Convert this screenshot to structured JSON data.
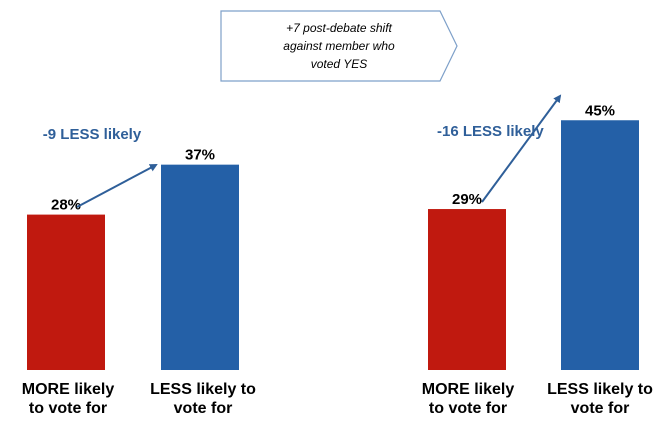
{
  "callout": {
    "lines": [
      "+7 post-debate  shift",
      "against  member  who",
      "voted YES"
    ]
  },
  "colors": {
    "more": "#c0190f",
    "less": "#2460a7",
    "annotation": "#2f5f99",
    "callout_border": "#7ea0c9"
  },
  "chart_data": [
    {
      "type": "bar",
      "categories": [
        [
          "MORE likely",
          "to vote for"
        ],
        [
          "LESS likely to",
          "vote for"
        ]
      ],
      "values": [
        28,
        37
      ],
      "value_labels": [
        "28%",
        "37%"
      ],
      "ylim": [
        0,
        50
      ],
      "annotation": "-9 LESS likely"
    },
    {
      "type": "bar",
      "categories": [
        [
          "MORE likely",
          "to vote for"
        ],
        [
          "LESS likely to",
          "vote for"
        ]
      ],
      "values": [
        29,
        45
      ],
      "value_labels": [
        "29%",
        "45%"
      ],
      "ylim": [
        0,
        50
      ],
      "annotation": "-16 LESS likely"
    }
  ]
}
